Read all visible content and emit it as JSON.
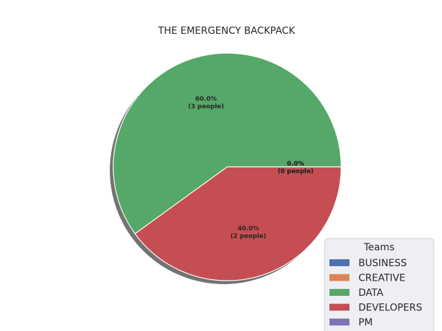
{
  "chart_data": {
    "type": "pie",
    "title": "THE EMERGENCY BACKPACK",
    "unit_label": "people",
    "slices": [
      {
        "name": "BUSINESS",
        "value": 0,
        "percent": "0.0%",
        "color": "#4c72b0"
      },
      {
        "name": "CREATIVE",
        "value": 0,
        "percent": "0.0%",
        "color": "#dd8452"
      },
      {
        "name": "DATA",
        "value": 3,
        "percent": "60.0%",
        "color": "#55a868"
      },
      {
        "name": "DEVELOPERS",
        "value": 2,
        "percent": "40.0%",
        "color": "#c44e52"
      },
      {
        "name": "PM",
        "value": 0,
        "percent": "0.0%",
        "color": "#8172b3"
      }
    ],
    "legend": {
      "title": "Teams",
      "placement": "bottom-right"
    },
    "shadow": true
  }
}
